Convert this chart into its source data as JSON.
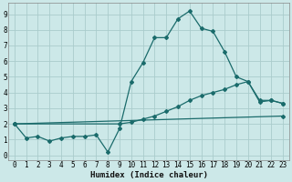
{
  "xlabel": "Humidex (Indice chaleur)",
  "bg_color": "#cce8e8",
  "grid_color": "#aacccc",
  "line_color": "#1a6b6b",
  "xlim": [
    -0.5,
    23.5
  ],
  "ylim": [
    -0.3,
    9.7
  ],
  "xticks": [
    0,
    1,
    2,
    3,
    4,
    5,
    6,
    7,
    8,
    9,
    10,
    11,
    12,
    13,
    14,
    15,
    16,
    17,
    18,
    19,
    20,
    21,
    22,
    23
  ],
  "yticks": [
    0,
    1,
    2,
    3,
    4,
    5,
    6,
    7,
    8,
    9
  ],
  "line1_x": [
    0,
    1,
    2,
    3,
    4,
    5,
    6,
    7,
    8,
    9,
    10,
    11,
    12,
    13,
    14,
    15,
    16,
    17,
    18,
    19,
    20,
    21,
    22,
    23
  ],
  "line1_y": [
    2.0,
    1.1,
    1.2,
    0.9,
    1.1,
    1.2,
    1.2,
    1.3,
    0.2,
    1.7,
    4.7,
    5.9,
    7.5,
    7.5,
    8.7,
    9.2,
    8.1,
    7.9,
    6.6,
    5.0,
    4.7,
    3.4,
    3.5,
    3.3
  ],
  "line2_x": [
    0,
    9,
    10,
    11,
    12,
    13,
    14,
    15,
    16,
    17,
    18,
    19,
    20,
    21,
    22,
    23
  ],
  "line2_y": [
    2.0,
    2.0,
    2.1,
    2.3,
    2.5,
    2.8,
    3.1,
    3.5,
    3.8,
    4.0,
    4.2,
    4.5,
    4.7,
    3.5,
    3.5,
    3.3
  ],
  "line3_x": [
    0,
    23
  ],
  "line3_y": [
    2.0,
    2.5
  ]
}
